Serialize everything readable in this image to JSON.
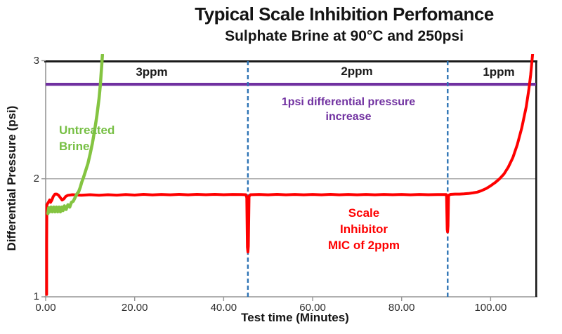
{
  "colors": {
    "red_series": "#FE0000",
    "green_series": "#84C441",
    "green_text": "#76BF43",
    "purple_threshold": "#7030A0",
    "marker_blue": "#2E74B5",
    "grid_gray": "#ABABAB",
    "axis_gray": "#969696",
    "border_black": "#1A1A1A"
  },
  "chart_data": {
    "type": "line",
    "title": "Typical Scale Inhibition Perfomance",
    "subtitle": "Sulphate Brine at 90°C and 250psi",
    "xlabel": "Test time (Minutes)",
    "ylabel": "Differential Pressure (psi)",
    "xlim": [
      0,
      110.2
    ],
    "ylim": [
      1,
      3
    ],
    "grid": "horizontal-only",
    "gridlines_y": [
      2
    ],
    "x_ticks": [
      {
        "v": 0,
        "label": "0.00"
      },
      {
        "v": 20,
        "label": "20.00"
      },
      {
        "v": 40,
        "label": "40.00"
      },
      {
        "v": 60,
        "label": "60.00"
      },
      {
        "v": 80,
        "label": "80.00"
      },
      {
        "v": 100,
        "label": "100.00"
      }
    ],
    "y_ticks": [
      {
        "v": 1,
        "label": "1"
      },
      {
        "v": 2,
        "label": "2"
      },
      {
        "v": 3,
        "label": "3"
      }
    ],
    "threshold_line": {
      "y": 2.8,
      "color": "#7030A0",
      "label_lines": [
        "1psi differential pressure",
        "increase"
      ]
    },
    "vertical_markers": [
      {
        "x": 45.45,
        "style": "dashed",
        "color": "#2E74B5"
      },
      {
        "x": 90.35,
        "style": "dashed",
        "color": "#2E74B5"
      }
    ],
    "region_labels": [
      {
        "text": "3ppm",
        "range_min": [
          0,
          45.45
        ]
      },
      {
        "text": "2ppm",
        "range_min": [
          45.45,
          90.35
        ]
      },
      {
        "text": "1ppm",
        "range_min": [
          90.35,
          110.2
        ]
      }
    ],
    "series": [
      {
        "name": "Scale Inhibitor treated brine",
        "color": "#FE0000",
        "label_lines": [
          "Scale",
          "Inhibitor",
          "MIC of 2ppm"
        ],
        "points": [
          [
            0.22,
            1.02
          ],
          [
            0.22,
            1.45
          ],
          [
            0.27,
            1.78
          ],
          [
            0.6,
            1.8
          ],
          [
            0.9,
            1.82
          ],
          [
            1.1,
            1.8
          ],
          [
            1.4,
            1.82
          ],
          [
            1.7,
            1.85
          ],
          [
            2.1,
            1.87
          ],
          [
            2.5,
            1.87
          ],
          [
            2.9,
            1.86
          ],
          [
            3.3,
            1.84
          ],
          [
            3.7,
            1.82
          ],
          [
            4.1,
            1.83
          ],
          [
            4.5,
            1.85
          ],
          [
            5.0,
            1.86
          ],
          [
            6,
            1.865
          ],
          [
            8,
            1.86
          ],
          [
            10,
            1.865
          ],
          [
            12,
            1.86
          ],
          [
            14,
            1.865
          ],
          [
            16,
            1.861
          ],
          [
            18,
            1.866
          ],
          [
            20,
            1.862
          ],
          [
            22,
            1.868
          ],
          [
            24,
            1.863
          ],
          [
            26,
            1.867
          ],
          [
            28,
            1.864
          ],
          [
            30,
            1.868
          ],
          [
            32,
            1.864
          ],
          [
            34,
            1.868
          ],
          [
            36,
            1.865
          ],
          [
            38,
            1.868
          ],
          [
            40,
            1.865
          ],
          [
            42,
            1.867
          ],
          [
            44,
            1.866
          ],
          [
            45.0,
            1.865
          ],
          [
            45.2,
            1.84
          ],
          [
            45.35,
            1.42
          ],
          [
            45.45,
            1.38
          ],
          [
            45.55,
            1.43
          ],
          [
            45.7,
            1.85
          ],
          [
            46,
            1.865
          ],
          [
            48,
            1.867
          ],
          [
            50,
            1.864
          ],
          [
            52,
            1.868
          ],
          [
            54,
            1.864
          ],
          [
            56,
            1.867
          ],
          [
            58,
            1.864
          ],
          [
            60,
            1.867
          ],
          [
            62,
            1.864
          ],
          [
            64,
            1.868
          ],
          [
            66,
            1.864
          ],
          [
            68,
            1.867
          ],
          [
            70,
            1.864
          ],
          [
            72,
            1.867
          ],
          [
            74,
            1.864
          ],
          [
            76,
            1.867
          ],
          [
            78,
            1.865
          ],
          [
            80,
            1.867
          ],
          [
            82,
            1.864
          ],
          [
            84,
            1.867
          ],
          [
            86,
            1.865
          ],
          [
            88,
            1.866
          ],
          [
            90.0,
            1.866
          ],
          [
            90.1,
            1.85
          ],
          [
            90.25,
            1.57
          ],
          [
            90.32,
            1.55
          ],
          [
            90.42,
            1.6
          ],
          [
            90.55,
            1.86
          ],
          [
            91,
            1.868
          ],
          [
            92,
            1.87
          ],
          [
            93,
            1.87
          ],
          [
            94,
            1.872
          ],
          [
            95,
            1.875
          ],
          [
            96,
            1.88
          ],
          [
            97,
            1.887
          ],
          [
            98,
            1.9
          ],
          [
            99,
            1.917
          ],
          [
            100,
            1.94
          ],
          [
            101,
            1.967
          ],
          [
            102,
            2.0
          ],
          [
            103,
            2.04
          ],
          [
            104,
            2.1
          ],
          [
            105,
            2.18
          ],
          [
            106,
            2.29
          ],
          [
            107,
            2.43
          ],
          [
            108,
            2.61
          ],
          [
            108.6,
            2.76
          ],
          [
            109.0,
            2.88
          ],
          [
            109.3,
            3.0
          ],
          [
            109.45,
            3.06
          ]
        ]
      },
      {
        "name": "Untreated Brine",
        "color": "#84C441",
        "label_lines": [
          "Untreated",
          "Brine"
        ],
        "points": [
          [
            0.5,
            1.705
          ],
          [
            0.7,
            1.755
          ],
          [
            0.9,
            1.72
          ],
          [
            1.2,
            1.76
          ],
          [
            1.5,
            1.72
          ],
          [
            1.8,
            1.76
          ],
          [
            2.1,
            1.72
          ],
          [
            2.4,
            1.76
          ],
          [
            2.7,
            1.72
          ],
          [
            3.0,
            1.76
          ],
          [
            3.3,
            1.72
          ],
          [
            3.6,
            1.76
          ],
          [
            3.9,
            1.73
          ],
          [
            4.2,
            1.77
          ],
          [
            4.6,
            1.74
          ],
          [
            5.0,
            1.78
          ],
          [
            5.4,
            1.76
          ],
          [
            5.8,
            1.8
          ],
          [
            6.2,
            1.81
          ],
          [
            6.6,
            1.84
          ],
          [
            7.0,
            1.87
          ],
          [
            7.4,
            1.89
          ],
          [
            7.8,
            1.93
          ],
          [
            8.1,
            1.97
          ],
          [
            8.5,
            2.01
          ],
          [
            9.0,
            2.07
          ],
          [
            9.5,
            2.13
          ],
          [
            10.0,
            2.21
          ],
          [
            10.5,
            2.3
          ],
          [
            11.0,
            2.41
          ],
          [
            11.5,
            2.53
          ],
          [
            12.0,
            2.68
          ],
          [
            12.3,
            2.8
          ],
          [
            12.6,
            2.96
          ],
          [
            12.75,
            3.05
          ]
        ]
      }
    ]
  }
}
